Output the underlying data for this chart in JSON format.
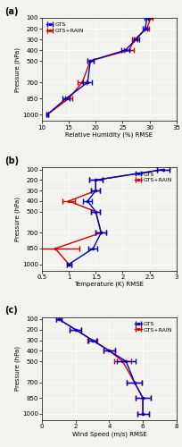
{
  "pressure_levels": [
    100,
    200,
    300,
    400,
    500,
    700,
    850,
    1000
  ],
  "rh_gts": [
    29.5,
    29.2,
    27.5,
    25.5,
    19.0,
    18.5,
    14.5,
    11.0
  ],
  "rh_rain": [
    30.2,
    29.5,
    27.2,
    26.2,
    19.0,
    17.5,
    15.0,
    11.0
  ],
  "rh_gts_ci": [
    0.4,
    0.4,
    0.5,
    0.7,
    0.6,
    0.8,
    0.7,
    0.2
  ],
  "rh_rain_ci": [
    0.4,
    0.4,
    0.5,
    0.9,
    0.6,
    0.8,
    0.7,
    0.2
  ],
  "rh_xlim": [
    10,
    35
  ],
  "rh_xticks": [
    10,
    15,
    20,
    25,
    30,
    35
  ],
  "rh_xlabel": "Relative Humidity (%) RMSE",
  "rh_ylim": [
    1060,
    280
  ],
  "temp_gts": [
    2.75,
    1.5,
    1.5,
    1.35,
    1.5,
    1.6,
    1.45,
    1.0
  ],
  "temp_rain": [
    2.75,
    1.5,
    1.5,
    1.0,
    1.5,
    1.6,
    0.75,
    1.0
  ],
  "temp_gts_ci": [
    0.12,
    0.12,
    0.08,
    0.08,
    0.08,
    0.1,
    0.08,
    0.04
  ],
  "temp_rain_ci": [
    0.12,
    0.12,
    0.08,
    0.12,
    0.08,
    0.1,
    0.45,
    0.04
  ],
  "temp_xlim": [
    0.5,
    3.0
  ],
  "temp_xticks": [
    0.5,
    1.0,
    1.5,
    2.0,
    2.5,
    3.0
  ],
  "temp_xlabel": "Temperature (K) RMSE",
  "temp_ylim": [
    1060,
    80
  ],
  "wind_gts": [
    1.0,
    2.0,
    3.0,
    4.0,
    5.0,
    5.5,
    6.0,
    6.0
  ],
  "wind_rain": [
    1.0,
    2.0,
    3.0,
    4.0,
    4.8,
    5.5,
    6.0,
    6.0
  ],
  "wind_gts_ci": [
    0.15,
    0.35,
    0.25,
    0.35,
    0.55,
    0.45,
    0.45,
    0.35
  ],
  "wind_rain_ci": [
    0.15,
    0.35,
    0.3,
    0.35,
    0.5,
    0.45,
    0.45,
    0.35
  ],
  "wind_xlim": [
    0,
    8
  ],
  "wind_xticks": [
    0,
    2,
    4,
    6,
    8
  ],
  "wind_xlabel": "Wind Speed (m/s) RMSE",
  "wind_ylim": [
    1060,
    80
  ],
  "pressure_yticks": [
    100,
    200,
    300,
    400,
    500,
    700,
    850,
    1000
  ],
  "color_gts": "#0000bb",
  "color_rain": "#cc0000",
  "label_gts": "GTS",
  "label_rain": "GTS+RAIN",
  "ylabel": "Pressure (hPa)",
  "panel_labels": [
    "(a)",
    "(b)",
    "(c)"
  ],
  "bg_color": "#f2f2ee",
  "grid_color": "#ffffff",
  "linewidth": 1.0,
  "capsize": 2,
  "markersize": 1.5,
  "legend_locs": [
    "upper left",
    "upper right",
    "upper right"
  ]
}
